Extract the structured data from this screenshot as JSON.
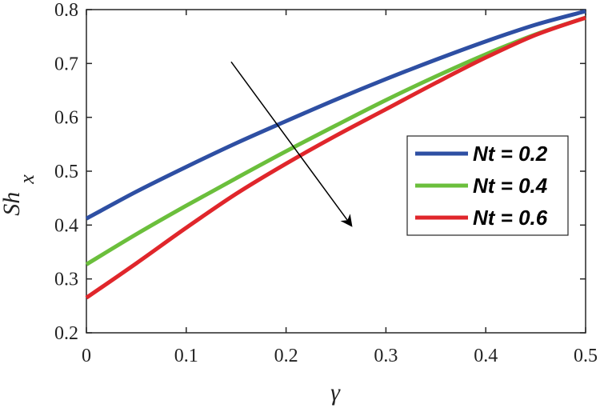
{
  "chart_data": {
    "type": "line",
    "xlabel": "γ",
    "ylabel_main": "Sh",
    "ylabel_sub": "x",
    "xlim": [
      0,
      0.5
    ],
    "ylim": [
      0.2,
      0.8
    ],
    "xticks": [
      0,
      0.1,
      0.2,
      0.3,
      0.4,
      0.5
    ],
    "xtick_labels": [
      "0",
      "0.1",
      "0.2",
      "0.3",
      "0.4",
      "0.5"
    ],
    "yticks": [
      0.2,
      0.3,
      0.4,
      0.5,
      0.6,
      0.7,
      0.8
    ],
    "ytick_labels": [
      "0.2",
      "0.3",
      "0.4",
      "0.5",
      "0.6",
      "0.7",
      "0.8"
    ],
    "grid": false,
    "legend_position": "right",
    "series": [
      {
        "name": "Nt = 0.2",
        "color": "#2E4FA3",
        "x": [
          0,
          0.05,
          0.1,
          0.15,
          0.2,
          0.25,
          0.3,
          0.35,
          0.4,
          0.45,
          0.5
        ],
        "y": [
          0.412,
          0.462,
          0.508,
          0.552,
          0.593,
          0.633,
          0.671,
          0.707,
          0.741,
          0.772,
          0.797
        ]
      },
      {
        "name": "Nt = 0.4",
        "color": "#6BBF3C",
        "x": [
          0,
          0.05,
          0.1,
          0.15,
          0.2,
          0.25,
          0.3,
          0.35,
          0.4,
          0.45,
          0.5
        ],
        "y": [
          0.327,
          0.383,
          0.436,
          0.487,
          0.537,
          0.585,
          0.632,
          0.676,
          0.717,
          0.754,
          0.785
        ]
      },
      {
        "name": "Nt = 0.6",
        "color": "#E0262B",
        "x": [
          0,
          0.05,
          0.1,
          0.15,
          0.2,
          0.25,
          0.3,
          0.35,
          0.4,
          0.45,
          0.5
        ],
        "y": [
          0.265,
          0.329,
          0.395,
          0.458,
          0.514,
          0.566,
          0.615,
          0.664,
          0.711,
          0.753,
          0.785
        ]
      }
    ],
    "annotation": {
      "type": "arrow",
      "meaning": "increasing Nt",
      "from": [
        0.145,
        0.703
      ],
      "to": [
        0.265,
        0.4
      ]
    }
  }
}
